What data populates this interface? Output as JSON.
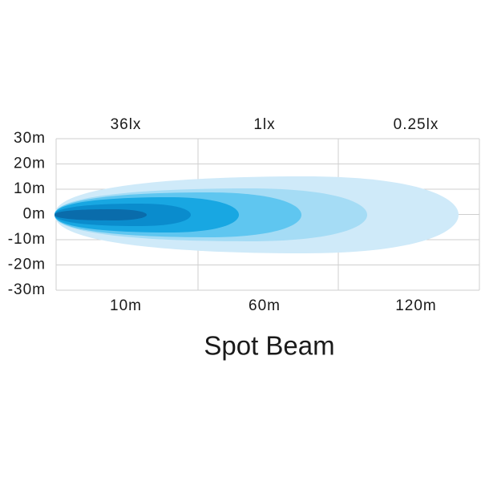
{
  "title": "Spot Beam",
  "top_labels": [
    "36lx",
    "1lx",
    "0.25lx"
  ],
  "y_labels": [
    "30m",
    "20m",
    "10m",
    "0m",
    "-10m",
    "-20m",
    "-30m"
  ],
  "x_labels": [
    "10m",
    "60m",
    "120m"
  ]
}
